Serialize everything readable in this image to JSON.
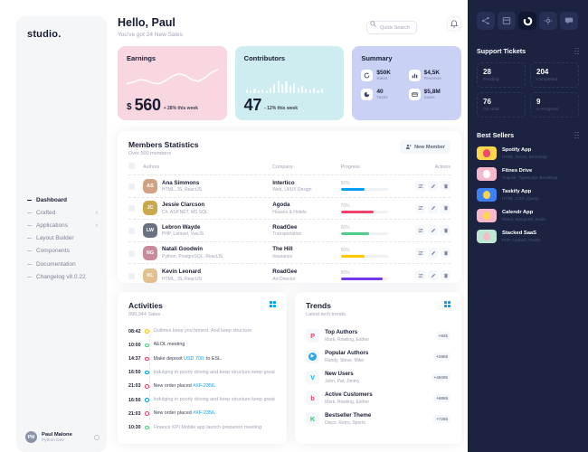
{
  "brand": {
    "logo": "studio."
  },
  "header": {
    "greeting": "Hello, Paul",
    "subtitle": "You've got 24 New Sales",
    "search_placeholder": "Quick Search"
  },
  "nav": {
    "chevron": "›",
    "items": [
      {
        "label": "Dashboard"
      },
      {
        "label": "Crafted"
      },
      {
        "label": "Applications"
      },
      {
        "label": "Layout Builder"
      },
      {
        "label": "Components"
      },
      {
        "label": "Documentation"
      },
      {
        "label": "Changelog v8.0.22"
      }
    ]
  },
  "user": {
    "name": "Paul Malone",
    "role": "Python Dev",
    "initials": "PM"
  },
  "stats": {
    "earnings": {
      "title": "Earnings",
      "currency": "$",
      "value": "560",
      "delta": "+ 28% this week",
      "sparkline": [
        20,
        18,
        15,
        16,
        19,
        20,
        16,
        11,
        8,
        10,
        15,
        17,
        13,
        7,
        3
      ]
    },
    "contributors": {
      "title": "Contributors",
      "value": "47",
      "delta": "- 12% this week",
      "bars": [
        4,
        3,
        5,
        3,
        4,
        3,
        6,
        10,
        14,
        10,
        13,
        8,
        11,
        6,
        8,
        5,
        4,
        6,
        3,
        5
      ]
    },
    "summary": {
      "title": "Summary",
      "items": [
        {
          "value": "$50K",
          "label": "Sales",
          "icon": "sync-icon"
        },
        {
          "value": "$4,5K",
          "label": "Revenue",
          "icon": "stats-icon"
        },
        {
          "value": "40",
          "label": "Tasks",
          "icon": "pie-icon"
        },
        {
          "value": "$5,8M",
          "label": "Sales",
          "icon": "wallet-icon"
        }
      ]
    }
  },
  "members": {
    "title": "Members Statistics",
    "subtitle": "Over 500 members",
    "new_member_label": "New Member",
    "columns": {
      "authors": "Authors",
      "company": "Company",
      "progress": "Progress",
      "actions": "Actions"
    },
    "rows": [
      {
        "initials": "AS",
        "avatar_bg": "#d1a384",
        "name": "Ana Simmons",
        "skills": "HTML, JS, ReactJS",
        "company": "Intertico",
        "field": "Web, UI/UX Design",
        "progress_label": "50%",
        "progress_width": "50%",
        "progress_color": "#009ef7"
      },
      {
        "initials": "JC",
        "avatar_bg": "#caa94e",
        "name": "Jessie Clarcson",
        "skills": "C#, ASP.NET, MS SQL",
        "company": "Agoda",
        "field": "Houses & Hotels",
        "progress_label": "70%",
        "progress_width": "70%",
        "progress_color": "#f1416c"
      },
      {
        "initials": "LW",
        "avatar_bg": "#6a7282",
        "name": "Lebron Wayde",
        "skills": "PHP, Laravel, VueJS",
        "company": "RoadGee",
        "field": "Transportation",
        "progress_label": "60%",
        "progress_width": "60%",
        "progress_color": "#50cd89"
      },
      {
        "initials": "NG",
        "avatar_bg": "#c98b9b",
        "name": "Natali Goodwin",
        "skills": "Python, PostgreSQL, ReactJS",
        "company": "The Hill",
        "field": "Insurance",
        "progress_label": "50%",
        "progress_width": "50%",
        "progress_color": "#ffc700"
      },
      {
        "initials": "KL",
        "avatar_bg": "#e3c08f",
        "name": "Kevin Leonard",
        "skills": "HTML, JS, ReactJS",
        "company": "RoadGee",
        "field": "Art Director",
        "progress_label": "90%",
        "progress_width": "90%",
        "progress_color": "#7239ea"
      }
    ]
  },
  "activities": {
    "title": "Activities",
    "subtitle": "890,344 Sales",
    "items": [
      {
        "time": "08:42",
        "color": "#ffc700",
        "text_color": "#a1a5b7",
        "pre": "Outlines keep you honest. And keep structure",
        "link": "",
        "post": ""
      },
      {
        "time": "10:00",
        "color": "#50cd89",
        "text_color": "#3f4254",
        "pre": "AEOL meeting",
        "link": "",
        "post": ""
      },
      {
        "time": "14:37",
        "color": "#f1416c",
        "text_color": "#3f4254",
        "pre": "Make deposit ",
        "link": "USD 700",
        "post": ". to ESL."
      },
      {
        "time": "16:50",
        "color": "#009ef7",
        "text_color": "#a1a5b7",
        "pre": "Indulging in poorly driving and keep structure keep great",
        "link": "",
        "post": ""
      },
      {
        "time": "21:03",
        "color": "#f1416c",
        "text_color": "#3f4254",
        "pre": "New order placed ",
        "link": "#XF-2356",
        "post": "."
      },
      {
        "time": "16:50",
        "color": "#009ef7",
        "text_color": "#a1a5b7",
        "pre": "Indulging in poorly driving and keep structure keep great",
        "link": "",
        "post": ""
      },
      {
        "time": "21:03",
        "color": "#f1416c",
        "text_color": "#3f4254",
        "pre": "New order placed ",
        "link": "#XF-2356",
        "post": "."
      },
      {
        "time": "10:30",
        "color": "#50cd89",
        "text_color": "#a1a5b7",
        "pre": "Finance KPI Mobile app launch preparion meeting",
        "link": "",
        "post": ""
      }
    ]
  },
  "trends": {
    "title": "Trends",
    "subtitle": "Latest tech trends",
    "items": [
      {
        "title": "Top Authors",
        "names": "Mark, Rowling, Esther",
        "badge": "+82$",
        "icon_glyph": "P",
        "icon_color": "#ee4266",
        "icon_bg": "transparent"
      },
      {
        "title": "Popular Authors",
        "names": "Randy, Steve, Mike",
        "badge": "+280$",
        "icon_glyph": "▶",
        "icon_color": "#ffffff",
        "icon_bg": "#29a9eb"
      },
      {
        "title": "New Users",
        "names": "John, Pat, Jimmy",
        "badge": "+4500$",
        "icon_glyph": "V",
        "icon_color": "#1ab7ea",
        "icon_bg": "transparent"
      },
      {
        "title": "Active Customers",
        "names": "Mark, Rowling, Esther",
        "badge": "+686$",
        "icon_glyph": "b",
        "icon_color": "#f1416c",
        "icon_bg": "transparent"
      },
      {
        "title": "Bestseller Theme",
        "names": "Disco, Retro, Sports",
        "badge": "+726$",
        "icon_glyph": "K",
        "icon_color": "#29cb6f",
        "icon_bg": "transparent"
      }
    ]
  },
  "support_tickets": {
    "title": "Support Tickets",
    "cells": [
      {
        "value": "28",
        "label": "Pending"
      },
      {
        "value": "204",
        "label": "Completed"
      },
      {
        "value": "76",
        "label": "On Hold"
      },
      {
        "value": "9",
        "label": "In Progress"
      }
    ]
  },
  "best_sellers": {
    "title": "Best Sellers",
    "items": [
      {
        "title": "Spotify App",
        "subtitle": "HTML, SASS, Bootstrap",
        "thumb_color": "#fdd64b",
        "blob_color": "#f1416c"
      },
      {
        "title": "Fitnes Drive",
        "subtitle": "Angular, Typescript, Bootstrap",
        "thumb_color": "#f6b9cb",
        "blob_color": "#ffffff"
      },
      {
        "title": "Taskify App",
        "subtitle": "HTML, CSS, jQuery",
        "thumb_color": "#3b82f6",
        "blob_color": "#fdd64b"
      },
      {
        "title": "Calendr App",
        "subtitle": "React, MangoDb, Node",
        "thumb_color": "#f6b9cb",
        "blob_color": "#fdd64b"
      },
      {
        "title": "Stacked SaaS",
        "subtitle": "PHP, Laravel, Oracle",
        "thumb_color": "#bfe8d4",
        "blob_color": "#f6b9cb"
      }
    ]
  }
}
